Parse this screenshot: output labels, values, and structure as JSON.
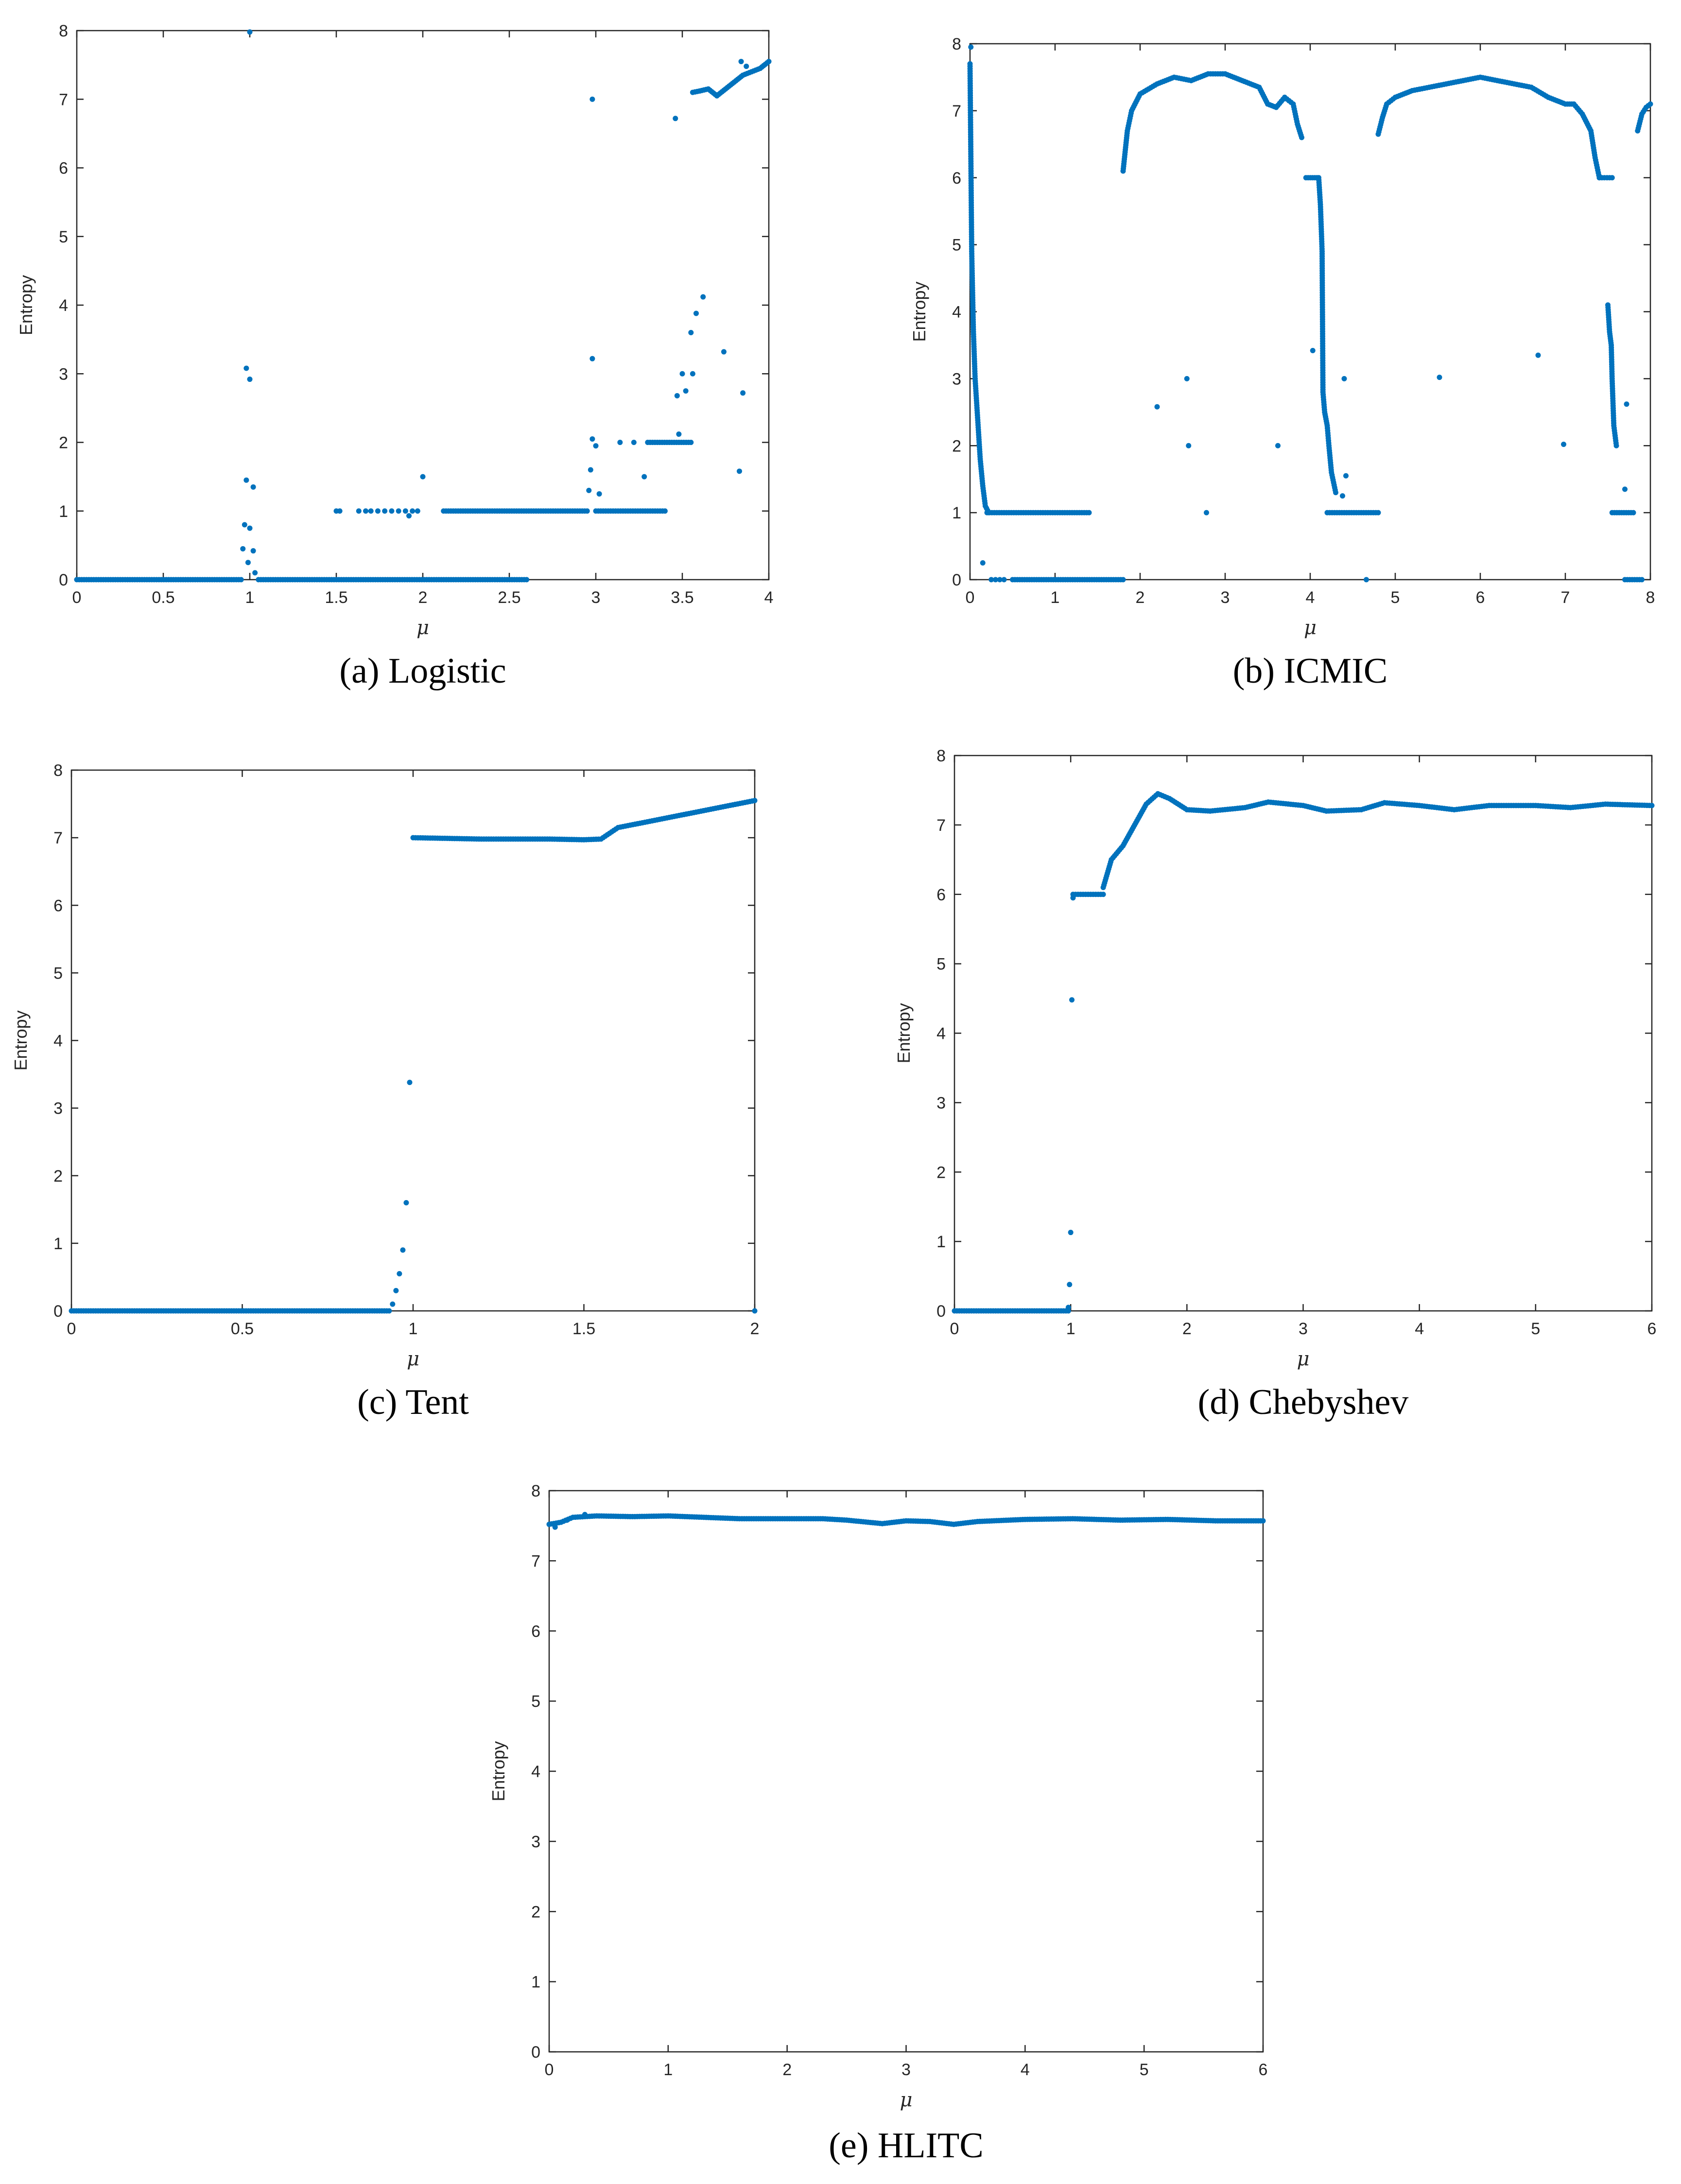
{
  "marker_color": "#0072BD",
  "chart_data": [
    {
      "type": "scatter",
      "caption": "(a) Logistic",
      "xlabel": "μ",
      "ylabel": "Entropy",
      "xlim": [
        0,
        4
      ],
      "ylim": [
        0,
        8
      ],
      "xticks": [
        0,
        0.5,
        1,
        1.5,
        2,
        2.5,
        3,
        3.5,
        4
      ],
      "yticks": [
        0,
        1,
        2,
        3,
        4,
        5,
        6,
        7,
        8
      ],
      "grid": false,
      "segments": [
        {
          "x0": 0,
          "x1": 0.95,
          "y": 0
        },
        {
          "x0": 1.05,
          "x1": 2.6,
          "y": 0
        },
        {
          "x0": 2.12,
          "x1": 2.95,
          "y": 1
        },
        {
          "x0": 3.0,
          "x1": 3.4,
          "y": 1
        },
        {
          "x0": 3.3,
          "x1": 3.55,
          "y": 2
        }
      ],
      "curves": [
        {
          "points": [
            [
              3.56,
              7.1
            ],
            [
              3.6,
              7.12
            ],
            [
              3.65,
              7.15
            ],
            [
              3.7,
              7.05
            ],
            [
              3.75,
              7.15
            ],
            [
              3.8,
              7.25
            ],
            [
              3.85,
              7.35
            ],
            [
              3.9,
              7.4
            ],
            [
              3.95,
              7.45
            ],
            [
              4.0,
              7.55
            ]
          ]
        }
      ],
      "points": [
        [
          1.0,
          7.98
        ],
        [
          0.98,
          3.08
        ],
        [
          1.0,
          2.92
        ],
        [
          0.98,
          1.45
        ],
        [
          1.02,
          1.35
        ],
        [
          0.97,
          0.8
        ],
        [
          1.0,
          0.75
        ],
        [
          0.96,
          0.45
        ],
        [
          1.02,
          0.42
        ],
        [
          0.99,
          0.25
        ],
        [
          1.03,
          0.1
        ],
        [
          1.5,
          1
        ],
        [
          1.52,
          1
        ],
        [
          1.63,
          1
        ],
        [
          1.67,
          1
        ],
        [
          1.7,
          1
        ],
        [
          1.74,
          1
        ],
        [
          1.78,
          1
        ],
        [
          1.82,
          1
        ],
        [
          1.86,
          1
        ],
        [
          1.9,
          1
        ],
        [
          1.94,
          1
        ],
        [
          1.97,
          1
        ],
        [
          1.92,
          0.93
        ],
        [
          2.0,
          1.5
        ],
        [
          2.98,
          7.0
        ],
        [
          3.46,
          6.72
        ],
        [
          2.98,
          3.22
        ],
        [
          3.62,
          4.12
        ],
        [
          3.55,
          3.6
        ],
        [
          3.58,
          3.88
        ],
        [
          3.74,
          3.32
        ],
        [
          3.5,
          3.0
        ],
        [
          3.56,
          3.0
        ],
        [
          3.52,
          2.75
        ],
        [
          3.47,
          2.68
        ],
        [
          3.85,
          2.72
        ],
        [
          2.98,
          2.05
        ],
        [
          3.0,
          1.95
        ],
        [
          3.14,
          2.0
        ],
        [
          3.22,
          2.0
        ],
        [
          2.97,
          1.6
        ],
        [
          2.96,
          1.3
        ],
        [
          3.02,
          1.25
        ],
        [
          3.28,
          1.5
        ],
        [
          3.83,
          1.58
        ],
        [
          3.48,
          2.12
        ],
        [
          3.84,
          7.55
        ],
        [
          3.87,
          7.48
        ]
      ]
    },
    {
      "type": "scatter",
      "caption": "(b) ICMIC",
      "xlabel": "μ",
      "ylabel": "Entropy",
      "xlim": [
        0,
        8
      ],
      "ylim": [
        0,
        8
      ],
      "xticks": [
        0,
        1,
        2,
        3,
        4,
        5,
        6,
        7,
        8
      ],
      "yticks": [
        0,
        1,
        2,
        3,
        4,
        5,
        6,
        7,
        8
      ],
      "grid": false,
      "segments": [
        {
          "x0": 0.2,
          "x1": 1.4,
          "y": 1
        },
        {
          "x0": 0.5,
          "x1": 1.8,
          "y": 0
        },
        {
          "x0": 4.2,
          "x1": 4.8,
          "y": 1
        },
        {
          "x0": 3.95,
          "x1": 4.08,
          "y": 6
        },
        {
          "x0": 7.4,
          "x1": 7.55,
          "y": 6
        },
        {
          "x0": 7.55,
          "x1": 7.8,
          "y": 1
        },
        {
          "x0": 7.7,
          "x1": 7.9,
          "y": 0
        }
      ],
      "curves": [
        {
          "points": [
            [
              0.0,
              7.7
            ],
            [
              0.02,
              4.9
            ],
            [
              0.04,
              3.7
            ],
            [
              0.06,
              3.0
            ],
            [
              0.08,
              2.6
            ],
            [
              0.1,
              2.2
            ],
            [
              0.12,
              1.8
            ],
            [
              0.15,
              1.4
            ],
            [
              0.18,
              1.1
            ],
            [
              0.22,
              1.0
            ]
          ]
        },
        {
          "points": [
            [
              1.8,
              6.1
            ],
            [
              1.85,
              6.7
            ],
            [
              1.9,
              7.0
            ],
            [
              2.0,
              7.25
            ],
            [
              2.2,
              7.4
            ],
            [
              2.4,
              7.5
            ],
            [
              2.6,
              7.45
            ],
            [
              2.8,
              7.55
            ],
            [
              3.0,
              7.55
            ],
            [
              3.2,
              7.45
            ],
            [
              3.4,
              7.35
            ],
            [
              3.5,
              7.1
            ],
            [
              3.6,
              7.05
            ],
            [
              3.7,
              7.2
            ],
            [
              3.8,
              7.1
            ],
            [
              3.85,
              6.8
            ],
            [
              3.9,
              6.6
            ]
          ]
        },
        {
          "points": [
            [
              4.8,
              6.65
            ],
            [
              4.85,
              6.9
            ],
            [
              4.9,
              7.1
            ],
            [
              5.0,
              7.2
            ],
            [
              5.2,
              7.3
            ],
            [
              5.4,
              7.35
            ],
            [
              5.6,
              7.4
            ],
            [
              5.8,
              7.45
            ],
            [
              6.0,
              7.5
            ],
            [
              6.2,
              7.45
            ],
            [
              6.4,
              7.4
            ],
            [
              6.6,
              7.35
            ],
            [
              6.8,
              7.2
            ],
            [
              7.0,
              7.1
            ],
            [
              7.1,
              7.1
            ],
            [
              7.2,
              6.95
            ],
            [
              7.3,
              6.7
            ],
            [
              7.35,
              6.3
            ],
            [
              7.4,
              6.0
            ]
          ]
        },
        {
          "points": [
            [
              4.1,
              6.0
            ],
            [
              4.12,
              5.6
            ],
            [
              4.14,
              4.9
            ],
            [
              4.15,
              2.8
            ],
            [
              4.17,
              2.5
            ],
            [
              4.2,
              2.3
            ],
            [
              4.22,
              2.0
            ],
            [
              4.25,
              1.6
            ],
            [
              4.3,
              1.3
            ]
          ]
        },
        {
          "points": [
            [
              7.5,
              4.1
            ],
            [
              7.52,
              3.7
            ],
            [
              7.54,
              3.5
            ],
            [
              7.55,
              3.0
            ],
            [
              7.57,
              2.3
            ],
            [
              7.6,
              2.0
            ]
          ]
        },
        {
          "points": [
            [
              7.85,
              6.7
            ],
            [
              7.9,
              6.95
            ],
            [
              7.95,
              7.05
            ],
            [
              8.0,
              7.1
            ]
          ]
        }
      ],
      "points": [
        [
          0.15,
          0.25
        ],
        [
          0.25,
          0
        ],
        [
          0.3,
          0
        ],
        [
          0.35,
          0
        ],
        [
          0.4,
          0
        ],
        [
          0.01,
          7.95
        ],
        [
          2.2,
          2.58
        ],
        [
          2.55,
          3.0
        ],
        [
          2.57,
          2.0
        ],
        [
          2.78,
          1.0
        ],
        [
          3.62,
          2.0
        ],
        [
          4.03,
          3.42
        ],
        [
          4.4,
          3.0
        ],
        [
          4.42,
          1.55
        ],
        [
          4.38,
          1.25
        ],
        [
          4.66,
          0
        ],
        [
          5.52,
          3.02
        ],
        [
          6.68,
          3.35
        ],
        [
          6.98,
          2.02
        ],
        [
          7.72,
          2.62
        ],
        [
          7.7,
          1.35
        ]
      ]
    },
    {
      "type": "scatter",
      "caption": "(c) Tent",
      "xlabel": "μ",
      "ylabel": "Entropy",
      "xlim": [
        0,
        2
      ],
      "ylim": [
        0,
        8
      ],
      "xticks": [
        0,
        0.5,
        1,
        1.5,
        2
      ],
      "yticks": [
        0,
        1,
        2,
        3,
        4,
        5,
        6,
        7,
        8
      ],
      "grid": false,
      "segments": [
        {
          "x0": 0,
          "x1": 0.93,
          "y": 0
        }
      ],
      "curves": [
        {
          "points": [
            [
              1.0,
              7.0
            ],
            [
              1.2,
              6.98
            ],
            [
              1.4,
              6.98
            ],
            [
              1.5,
              6.97
            ],
            [
              1.55,
              6.98
            ],
            [
              1.6,
              7.15
            ],
            [
              1.7,
              7.25
            ],
            [
              1.8,
              7.35
            ],
            [
              1.9,
              7.45
            ],
            [
              2.0,
              7.55
            ]
          ]
        }
      ],
      "points": [
        [
          0.94,
          0.1
        ],
        [
          0.95,
          0.3
        ],
        [
          0.96,
          0.55
        ],
        [
          0.97,
          0.9
        ],
        [
          0.98,
          1.6
        ],
        [
          0.99,
          3.38
        ],
        [
          2.0,
          0
        ]
      ]
    },
    {
      "type": "scatter",
      "caption": "(d) Chebyshev",
      "xlabel": "μ",
      "ylabel": "Entropy",
      "xlim": [
        0,
        6
      ],
      "ylim": [
        0,
        8
      ],
      "xticks": [
        0,
        1,
        2,
        3,
        4,
        5,
        6
      ],
      "yticks": [
        0,
        1,
        2,
        3,
        4,
        5,
        6,
        7,
        8
      ],
      "grid": false,
      "segments": [
        {
          "x0": 0,
          "x1": 0.98,
          "y": 0
        },
        {
          "x0": 1.02,
          "x1": 1.28,
          "y": 6
        }
      ],
      "curves": [
        {
          "points": [
            [
              1.28,
              6.1
            ],
            [
              1.35,
              6.5
            ],
            [
              1.45,
              6.7
            ],
            [
              1.55,
              7.0
            ],
            [
              1.65,
              7.3
            ],
            [
              1.75,
              7.45
            ],
            [
              1.85,
              7.38
            ],
            [
              2.0,
              7.22
            ],
            [
              2.2,
              7.2
            ],
            [
              2.5,
              7.25
            ],
            [
              2.7,
              7.33
            ],
            [
              3.0,
              7.28
            ],
            [
              3.2,
              7.2
            ],
            [
              3.5,
              7.22
            ],
            [
              3.7,
              7.32
            ],
            [
              4.0,
              7.28
            ],
            [
              4.3,
              7.22
            ],
            [
              4.6,
              7.28
            ],
            [
              5.0,
              7.28
            ],
            [
              5.3,
              7.25
            ],
            [
              5.6,
              7.3
            ],
            [
              6.0,
              7.28
            ]
          ]
        }
      ],
      "points": [
        [
          0.98,
          0.05
        ],
        [
          0.99,
          0.38
        ],
        [
          1.0,
          1.13
        ],
        [
          1.01,
          4.48
        ],
        [
          1.02,
          5.95
        ]
      ]
    },
    {
      "type": "scatter",
      "caption": "(e) HLITC",
      "xlabel": "μ",
      "ylabel": "Entropy",
      "xlim": [
        0,
        6
      ],
      "ylim": [
        0,
        8
      ],
      "xticks": [
        0,
        1,
        2,
        3,
        4,
        5,
        6
      ],
      "yticks": [
        0,
        1,
        2,
        3,
        4,
        5,
        6,
        7,
        8
      ],
      "grid": false,
      "segments": [],
      "curves": [
        {
          "points": [
            [
              0.0,
              7.52
            ],
            [
              0.1,
              7.55
            ],
            [
              0.2,
              7.62
            ],
            [
              0.4,
              7.64
            ],
            [
              0.7,
              7.63
            ],
            [
              1.0,
              7.64
            ],
            [
              1.3,
              7.62
            ],
            [
              1.6,
              7.6
            ],
            [
              2.0,
              7.6
            ],
            [
              2.3,
              7.6
            ],
            [
              2.5,
              7.58
            ],
            [
              2.8,
              7.53
            ],
            [
              3.0,
              7.57
            ],
            [
              3.2,
              7.56
            ],
            [
              3.4,
              7.52
            ],
            [
              3.6,
              7.56
            ],
            [
              4.0,
              7.59
            ],
            [
              4.4,
              7.6
            ],
            [
              4.8,
              7.58
            ],
            [
              5.2,
              7.59
            ],
            [
              5.6,
              7.57
            ],
            [
              6.0,
              7.57
            ]
          ]
        }
      ],
      "points": [
        [
          0.05,
          7.48
        ],
        [
          0.15,
          7.58
        ],
        [
          0.3,
          7.66
        ]
      ]
    }
  ]
}
